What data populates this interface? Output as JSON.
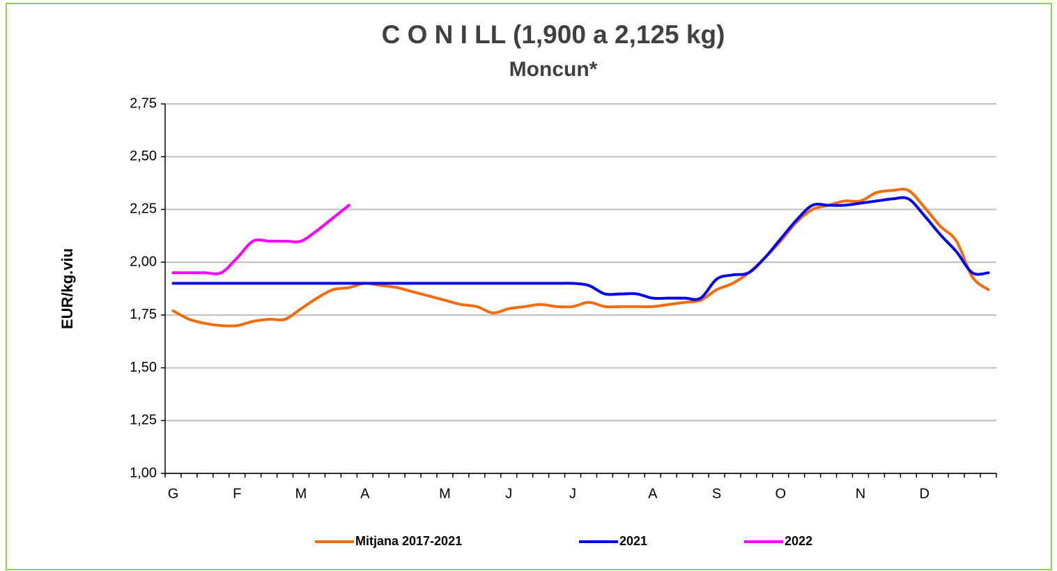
{
  "chart_data": {
    "type": "line",
    "title": "C O N I LL (1,900 a 2,125 kg)",
    "subtitle": "Moncun*",
    "y_label": "EUR/kg.viu",
    "categories": [
      "G",
      null,
      null,
      null,
      "F",
      null,
      null,
      null,
      "M",
      null,
      null,
      null,
      "A",
      null,
      null,
      null,
      null,
      "M",
      null,
      null,
      null,
      "J",
      null,
      null,
      null,
      "J",
      null,
      null,
      null,
      null,
      "A",
      null,
      null,
      null,
      "S",
      null,
      null,
      null,
      "O",
      null,
      null,
      null,
      null,
      "N",
      null,
      null,
      null,
      "D",
      null,
      null,
      null,
      null
    ],
    "series": [
      {
        "name": "Mitjana 2017-2021",
        "color": "#f26c0d",
        "values": [
          1.77,
          1.73,
          1.71,
          1.7,
          1.7,
          1.72,
          1.73,
          1.73,
          1.78,
          1.83,
          1.87,
          1.88,
          1.9,
          1.89,
          1.88,
          1.86,
          1.84,
          1.82,
          1.8,
          1.79,
          1.76,
          1.78,
          1.79,
          1.8,
          1.79,
          1.79,
          1.81,
          1.79,
          1.79,
          1.79,
          1.79,
          1.8,
          1.81,
          1.82,
          1.87,
          1.9,
          1.95,
          2.02,
          2.1,
          2.19,
          2.25,
          2.27,
          2.29,
          2.29,
          2.33,
          2.34,
          2.34,
          2.26,
          2.17,
          2.1,
          1.93,
          1.87
        ]
      },
      {
        "name": "2021",
        "color": "#0000f5",
        "values": [
          1.9,
          1.9,
          1.9,
          1.9,
          1.9,
          1.9,
          1.9,
          1.9,
          1.9,
          1.9,
          1.9,
          1.9,
          1.9,
          1.9,
          1.9,
          1.9,
          1.9,
          1.9,
          1.9,
          1.9,
          1.9,
          1.9,
          1.9,
          1.9,
          1.9,
          1.9,
          1.89,
          1.85,
          1.85,
          1.85,
          1.83,
          1.83,
          1.83,
          1.83,
          1.92,
          1.94,
          1.95,
          2.02,
          2.11,
          2.2,
          2.27,
          2.27,
          2.27,
          2.28,
          2.29,
          2.3,
          2.3,
          2.22,
          2.13,
          2.05,
          1.95,
          1.95
        ]
      },
      {
        "name": "2022",
        "color": "#ff00ff",
        "values": [
          1.95,
          1.95,
          1.95,
          1.95,
          2.02,
          2.1,
          2.1,
          2.1,
          2.1,
          2.15,
          2.21,
          2.27,
          null,
          null,
          null,
          null,
          null,
          null,
          null,
          null,
          null,
          null,
          null,
          null,
          null,
          null,
          null,
          null,
          null,
          null,
          null,
          null,
          null,
          null,
          null,
          null,
          null,
          null,
          null,
          null,
          null,
          null,
          null,
          null,
          null,
          null,
          null,
          null,
          null,
          null,
          null,
          null
        ]
      }
    ],
    "ylim": [
      1.0,
      2.75
    ],
    "yticks": [
      {
        "value": 1.0,
        "label": "1,00"
      },
      {
        "value": 1.25,
        "label": "1,25"
      },
      {
        "value": 1.5,
        "label": "1,50"
      },
      {
        "value": 1.75,
        "label": "1,75"
      },
      {
        "value": 2.0,
        "label": "2,00"
      },
      {
        "value": 2.25,
        "label": "2,25"
      },
      {
        "value": 2.5,
        "label": "2,50"
      },
      {
        "value": 2.75,
        "label": "2,75"
      }
    ],
    "grid": true,
    "legend": "bottom"
  }
}
